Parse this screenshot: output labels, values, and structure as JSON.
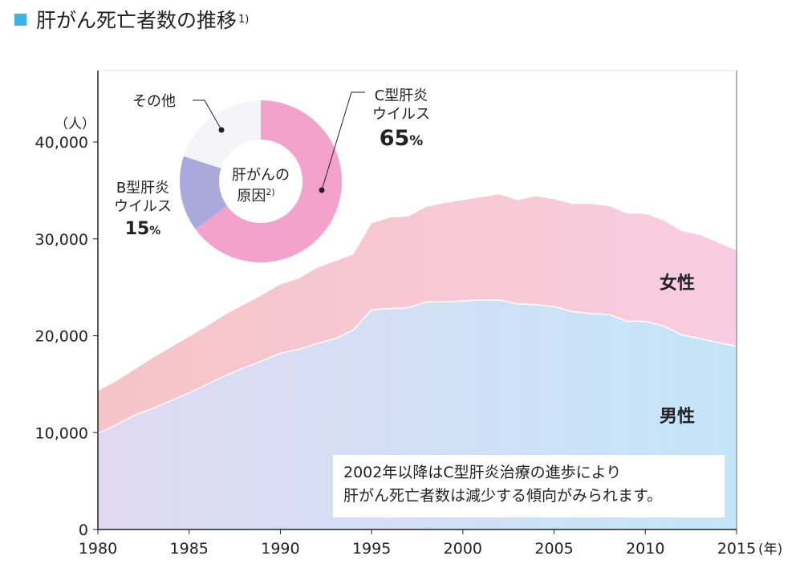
{
  "title": "肝がん死亡者数の推移",
  "title_note": "1)",
  "chart_data": {
    "type": "area",
    "stacked": true,
    "title": "肝がん死亡者数の推移",
    "ylabel": "（人）",
    "xlabel": "(年)",
    "ylim": [
      0,
      40000
    ],
    "xlim": [
      1980,
      2015
    ],
    "y_ticks": [
      0,
      10000,
      20000,
      30000,
      40000
    ],
    "y_tick_labels": [
      "0",
      "10,000",
      "20,000",
      "30,000",
      "40,000"
    ],
    "x_ticks": [
      1980,
      1985,
      1990,
      1995,
      2000,
      2005,
      2010,
      2015
    ],
    "x_tick_labels": [
      "1980",
      "1985",
      "1990",
      "1995",
      "2000",
      "2005",
      "2010",
      "2015"
    ],
    "x": [
      1980,
      1981,
      1982,
      1983,
      1984,
      1985,
      1986,
      1987,
      1988,
      1989,
      1990,
      1991,
      1992,
      1993,
      1994,
      1995,
      1996,
      1997,
      1998,
      1999,
      2000,
      2001,
      2002,
      2003,
      2004,
      2005,
      2006,
      2007,
      2008,
      2009,
      2010,
      2011,
      2012,
      2013,
      2014,
      2015
    ],
    "series": [
      {
        "name": "男性",
        "color": "#c8e6f8",
        "values": [
          9900,
          10800,
          11800,
          12500,
          13300,
          14100,
          15000,
          15900,
          16700,
          17400,
          18200,
          18600,
          19200,
          19700,
          20600,
          22700,
          22800,
          22900,
          23500,
          23500,
          23600,
          23700,
          23700,
          23300,
          23200,
          23000,
          22500,
          22300,
          22200,
          21500,
          21500,
          21000,
          20100,
          19700,
          19300,
          18900
        ]
      },
      {
        "name": "女性",
        "color": "#f8cde0",
        "values": [
          4400,
          4500,
          4700,
          5200,
          5500,
          5800,
          6000,
          6300,
          6500,
          6800,
          7100,
          7300,
          7800,
          8000,
          7800,
          8900,
          9400,
          9400,
          9800,
          10200,
          10400,
          10600,
          10900,
          10700,
          11200,
          11100,
          11100,
          11300,
          11200,
          11100,
          11100,
          10900,
          10700,
          10700,
          10300,
          9900
        ]
      }
    ],
    "annotation": [
      "2002年以降はC型肝炎治療の進歩により",
      "肝がん死亡者数は減少する傾向がみられます。"
    ],
    "inset": {
      "type": "pie",
      "title": [
        "肝がんの",
        "原因"
      ],
      "title_note": "2)",
      "slices": [
        {
          "label": [
            "C型肝炎",
            "ウイルス"
          ],
          "value": 65,
          "value_label": "65",
          "color": "#f3a3cb"
        },
        {
          "label": [
            "B型肝炎",
            "ウイルス"
          ],
          "value": 15,
          "value_label": "15",
          "color": "#a9a9dc"
        },
        {
          "label": [
            "その他"
          ],
          "value": 20,
          "value_label": "",
          "color": "#f5f5f7"
        }
      ],
      "unit": "%"
    }
  }
}
